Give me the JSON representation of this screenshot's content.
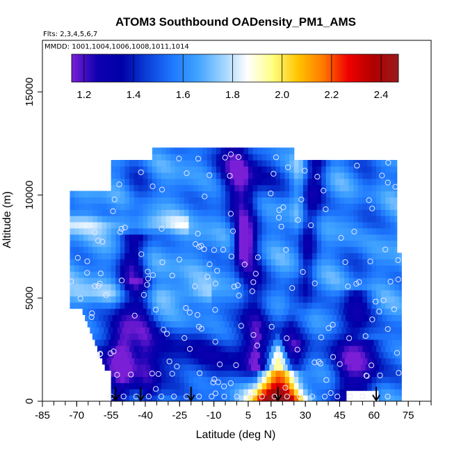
{
  "chart_data": {
    "type": "heatmap",
    "title": "ATOM3 Southbound OADensity_PM1_AMS",
    "subtitle": "Flts: 2,3,4,5,6,7",
    "annotation": "MMDD: 1001,1004,1006,1008,1011,1014",
    "xlabel": "Latitude (deg N)",
    "ylabel": "Altitude (m)",
    "xlim": [
      -85,
      85
    ],
    "ylim": [
      0,
      17500
    ],
    "x_ticks": [
      "-85",
      "-70",
      "-55",
      "-40",
      "-25",
      "-10",
      "5",
      "15",
      "30",
      "45",
      "60",
      "75"
    ],
    "y_ticks": [
      "0",
      "5000",
      "10000",
      "15000"
    ],
    "colorbar": {
      "range": [
        1.15,
        2.47
      ],
      "tick_labels": [
        "1.2",
        "1.4",
        "1.6",
        "1.8",
        "2.0",
        "2.2",
        "2.4"
      ],
      "colors": [
        "#7a1fd6",
        "#1000b0",
        "#0000a8",
        "#0a3fd8",
        "#1e78ff",
        "#3fa2ff",
        "#9cd2ff",
        "#ffffff",
        "#ffff80",
        "#ffc400",
        "#ff7a00",
        "#f00000",
        "#b00000",
        "#9a1a1a"
      ],
      "placement": "top-inside"
    },
    "profile_markers_latitude": [
      -53,
      -42,
      -20,
      18,
      61
    ],
    "grid": false,
    "legend": "none",
    "colors": {
      "field_low": "#0000a8",
      "field_mid": "#2e8cff",
      "field_light": "#a8d4ff",
      "plume_high": "#f00000",
      "plume_mid": "#ffc400",
      "point_outline": "#e8e8ff"
    }
  }
}
